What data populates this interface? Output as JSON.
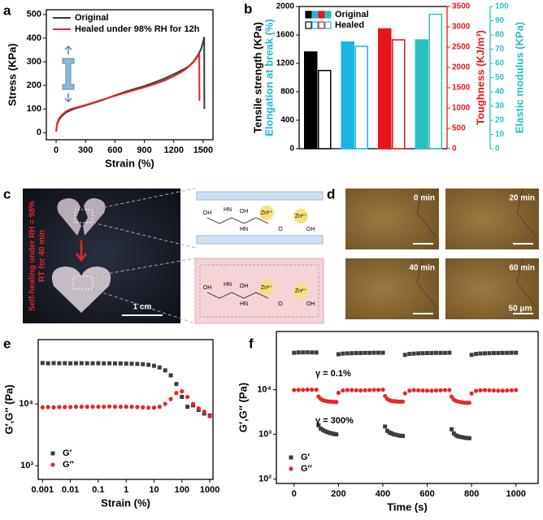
{
  "chart_data": [
    {
      "panel": "a",
      "type": "line",
      "xlabel": "Strain (%)",
      "ylabel": "Stress (KPa)",
      "xlim": [
        -100,
        1600
      ],
      "ylim": [
        -30,
        520
      ],
      "xticks": [
        0,
        300,
        600,
        900,
        1200,
        1500
      ],
      "yticks": [
        0,
        100,
        200,
        300,
        400,
        500
      ],
      "legend": "upper left",
      "series": [
        {
          "name": "Original",
          "color": "#3a3a3a",
          "x": [
            0,
            10,
            30,
            60,
            100,
            150,
            200,
            300,
            400,
            500,
            600,
            700,
            800,
            900,
            1000,
            1100,
            1200,
            1300,
            1350,
            1400,
            1450,
            1480,
            1500,
            1510,
            1512
          ],
          "values": [
            5,
            35,
            55,
            70,
            85,
            95,
            103,
            115,
            128,
            142,
            158,
            172,
            185,
            197,
            212,
            228,
            247,
            268,
            280,
            300,
            330,
            355,
            385,
            405,
            100
          ]
        },
        {
          "name": "Healed under 98% RH for 12h",
          "color": "#e8262a",
          "x": [
            0,
            10,
            30,
            60,
            100,
            150,
            200,
            300,
            400,
            500,
            600,
            700,
            800,
            900,
            1000,
            1100,
            1200,
            1300,
            1350,
            1400,
            1430,
            1450,
            1460,
            1462
          ],
          "values": [
            5,
            40,
            60,
            75,
            90,
            100,
            106,
            117,
            130,
            143,
            156,
            168,
            180,
            192,
            205,
            220,
            238,
            262,
            278,
            298,
            315,
            325,
            330,
            135
          ]
        }
      ]
    },
    {
      "panel": "b",
      "type": "multi_axis_bar",
      "axes": [
        {
          "label": "Tensile strength (KPa)",
          "color": "#000000",
          "lim": [
            0,
            2000
          ],
          "ticks": [
            0,
            400,
            800,
            1200,
            1600,
            2000
          ]
        },
        {
          "label": "Elongation at break (%)",
          "color": "#19b5e8"
        },
        {
          "label": "Toughness (KJ/m³)",
          "color": "#e8141b",
          "lim": [
            0,
            3500
          ],
          "ticks": [
            0,
            500,
            1000,
            1500,
            2000,
            2500,
            3000,
            3500
          ]
        },
        {
          "label": "Elastic modulus (KPa)",
          "color": "#2bbfc0",
          "lim": [
            0,
            100
          ],
          "ticks": [
            0,
            10,
            20,
            30,
            40,
            50,
            60,
            70,
            80,
            90,
            100
          ]
        }
      ],
      "group_axis": [
        0,
        0,
        2,
        3
      ],
      "group_colors": [
        "#000000",
        "#19b5e8",
        "#e8141b",
        "#2bbfc0"
      ],
      "series": [
        {
          "name": "Original",
          "values": [
            1360,
            1500,
            2950,
            76.5
          ]
        },
        {
          "name": "Healed",
          "values": [
            1100,
            1440,
            2680,
            94.5
          ]
        }
      ]
    },
    {
      "panel": "e",
      "type": "scatter",
      "xlabel": "Strain (%)",
      "ylabel": "G′,G″ (Pa)",
      "xscale": "log",
      "yscale": "log",
      "xlim": [
        0.0007,
        1300
      ],
      "ylim": [
        600,
        110000
      ],
      "xticks": [
        0.001,
        0.01,
        0.1,
        1,
        10,
        100,
        1000
      ],
      "yticks": [
        {
          "value": 1000,
          "label": "10³"
        },
        {
          "value": 10000,
          "label": "10⁴"
        }
      ],
      "legend": "lower left",
      "x": [
        0.001,
        0.00158,
        0.00251,
        0.00398,
        0.00631,
        0.01,
        0.0158,
        0.0251,
        0.0398,
        0.0631,
        0.1,
        0.158,
        0.251,
        0.398,
        0.631,
        1,
        1.58,
        2.51,
        3.98,
        6.31,
        10,
        15.8,
        25.1,
        39.8,
        63.1,
        100,
        158,
        251,
        398,
        631,
        1000
      ],
      "series": [
        {
          "name": "G′",
          "color": "#3c3c3c",
          "marker": "square",
          "values": [
            46000,
            45500,
            45800,
            45600,
            45700,
            45500,
            45600,
            45700,
            45600,
            45500,
            45600,
            45400,
            45500,
            45300,
            45200,
            45000,
            44800,
            44500,
            44000,
            43000,
            41500,
            39000,
            35000,
            29000,
            21000,
            13000,
            9000,
            9500,
            8000,
            7000,
            6500
          ]
        },
        {
          "name": "G″",
          "color": "#e8262a",
          "marker": "circle",
          "values": [
            8800,
            8900,
            8800,
            8900,
            8900,
            8900,
            9000,
            9000,
            9000,
            9000,
            9000,
            9000,
            9100,
            9000,
            9000,
            9000,
            9000,
            8900,
            8800,
            8700,
            8700,
            9000,
            10000,
            12000,
            15000,
            16000,
            13000,
            10000,
            8500,
            7500,
            6300
          ]
        }
      ]
    },
    {
      "panel": "f",
      "type": "scatter",
      "xlabel": "Time (s)",
      "ylabel": "G′,G″ (Pa)",
      "yscale": "log",
      "xlim": [
        -80,
        1100
      ],
      "ylim": [
        80,
        200000
      ],
      "xticks": [
        0,
        200,
        400,
        600,
        800,
        1000
      ],
      "yticks": [
        {
          "value": 100,
          "label": "10²"
        },
        {
          "value": 1000,
          "label": "10³"
        },
        {
          "value": 10000,
          "label": "10⁴"
        }
      ],
      "legend": "lower left",
      "annotations": [
        "γ = 0.1%",
        "γ = 300%"
      ],
      "x": [
        0,
        20,
        40,
        60,
        80,
        100,
        110,
        120,
        130,
        140,
        150,
        160,
        170,
        180,
        190,
        200,
        220,
        240,
        260,
        280,
        300,
        320,
        340,
        360,
        380,
        400,
        410,
        420,
        430,
        440,
        450,
        460,
        470,
        480,
        490,
        500,
        520,
        540,
        560,
        580,
        600,
        620,
        640,
        660,
        680,
        700,
        710,
        720,
        730,
        740,
        750,
        760,
        770,
        780,
        790,
        800,
        820,
        840,
        860,
        880,
        900,
        920,
        940,
        960,
        980,
        1000
      ],
      "series": [
        {
          "name": "G′",
          "color": "#3c3c3c",
          "marker": "square",
          "values": [
            67000,
            68000,
            68000,
            68500,
            68000,
            68000,
            1600,
            1350,
            1250,
            1180,
            1120,
            1080,
            1050,
            1020,
            1000,
            62000,
            64000,
            65000,
            65500,
            66000,
            66000,
            66500,
            66500,
            67000,
            67000,
            67000,
            1500,
            1200,
            1100,
            1050,
            1000,
            980,
            950,
            930,
            920,
            60000,
            63000,
            64000,
            65000,
            65500,
            66000,
            66000,
            66500,
            66500,
            66500,
            67000,
            1300,
            1050,
            950,
            900,
            880,
            860,
            840,
            830,
            820,
            60000,
            63000,
            64500,
            65000,
            65500,
            66000,
            66000,
            66500,
            66500,
            67000,
            67000
          ]
        },
        {
          "name": "G″",
          "color": "#e8262a",
          "marker": "circle",
          "values": [
            9800,
            9900,
            9900,
            10000,
            10000,
            10000,
            7000,
            6200,
            5800,
            5600,
            5500,
            5400,
            5400,
            5300,
            5300,
            8500,
            9600,
            9800,
            9800,
            9700,
            9600,
            9700,
            9800,
            9900,
            9900,
            10000,
            7200,
            6200,
            5800,
            5600,
            5500,
            5500,
            5400,
            5400,
            5400,
            8300,
            9500,
            9800,
            9700,
            9600,
            9500,
            9500,
            9600,
            9700,
            9800,
            9800,
            7000,
            6000,
            5600,
            5400,
            5300,
            5200,
            5100,
            5100,
            5100,
            8200,
            9400,
            9700,
            9800,
            9700,
            9600,
            9500,
            9500,
            9600,
            9700,
            9800
          ]
        }
      ]
    }
  ],
  "photo_panels": {
    "c": {
      "panel": "c",
      "caption_lines": [
        "Self-healing under RH = 98%",
        "RT for 40 min"
      ],
      "scale_bar": "1 cm",
      "top_labels": [
        "OH",
        "HN",
        "OH",
        "Zn²⁺",
        "Zn²⁺",
        "HN",
        "O",
        "OH"
      ],
      "bottom_labels": [
        "OH",
        "HN",
        "OH",
        "Zn²⁺",
        "Zn²⁺",
        "HN",
        "O",
        "OH"
      ]
    },
    "d": {
      "panel": "d",
      "times": [
        "0 min",
        "20 min",
        "40 min",
        "60 min"
      ],
      "scale_bar": "50 μm"
    }
  }
}
